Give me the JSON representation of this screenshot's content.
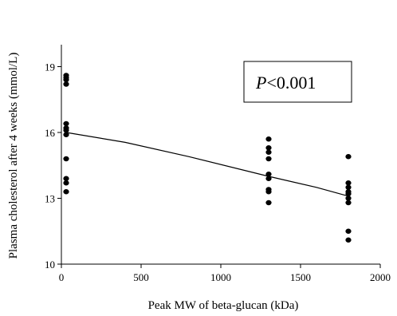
{
  "chart_data": {
    "type": "scatter",
    "title": "",
    "xlabel": "Peak MW of beta-glucan (kDa)",
    "ylabel": "Plasma cholesterol after 4 weeks (mmol/L)",
    "xlim": [
      0,
      2000
    ],
    "ylim": [
      10,
      20
    ],
    "xticks": [
      0,
      500,
      1000,
      1500,
      2000
    ],
    "yticks": [
      10,
      13,
      16,
      19
    ],
    "grid": false,
    "annotation": {
      "italic": "P",
      "rest": "<0.001"
    },
    "points": [
      [
        30,
        18.6
      ],
      [
        30,
        18.5
      ],
      [
        30,
        18.4
      ],
      [
        30,
        18.2
      ],
      [
        30,
        16.4
      ],
      [
        30,
        16.2
      ],
      [
        30,
        16.1
      ],
      [
        30,
        15.9
      ],
      [
        30,
        14.8
      ],
      [
        30,
        13.9
      ],
      [
        30,
        13.7
      ],
      [
        30,
        13.3
      ],
      [
        1300,
        15.7
      ],
      [
        1300,
        15.3
      ],
      [
        1300,
        15.1
      ],
      [
        1300,
        14.8
      ],
      [
        1300,
        14.1
      ],
      [
        1300,
        13.9
      ],
      [
        1300,
        13.4
      ],
      [
        1300,
        13.3
      ],
      [
        1300,
        12.8
      ],
      [
        1800,
        14.9
      ],
      [
        1800,
        13.7
      ],
      [
        1800,
        13.5
      ],
      [
        1800,
        13.3
      ],
      [
        1800,
        13.2
      ],
      [
        1800,
        13.0
      ],
      [
        1800,
        12.8
      ],
      [
        1800,
        11.5
      ],
      [
        1800,
        11.1
      ]
    ],
    "trend_line": [
      [
        30,
        16.0
      ],
      [
        400,
        15.55
      ],
      [
        800,
        14.9
      ],
      [
        1300,
        14.0
      ],
      [
        1600,
        13.5
      ],
      [
        1800,
        13.1
      ]
    ]
  }
}
